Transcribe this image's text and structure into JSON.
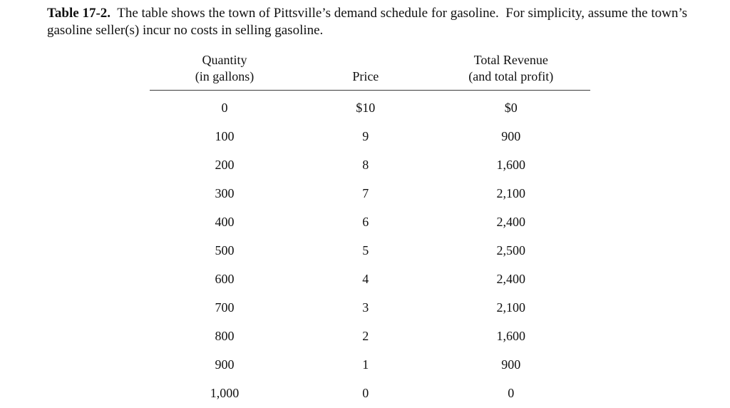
{
  "page": {
    "caption_label": "Table 17-2.",
    "caption_text": "The table shows the town of Pittsville’s demand schedule for gasoline.  For simplicity, assume the town’s gasoline seller(s) incur no costs in selling gasoline."
  },
  "table": {
    "columns": [
      {
        "line1": "Quantity",
        "line2": "(in gallons)"
      },
      {
        "line1": "",
        "line2": "Price"
      },
      {
        "line1": "Total Revenue",
        "line2": "(and total profit)"
      }
    ],
    "rows": [
      {
        "quantity": "0",
        "price": "$10",
        "revenue": "$0"
      },
      {
        "quantity": "100",
        "price": "9",
        "revenue": "900"
      },
      {
        "quantity": "200",
        "price": "8",
        "revenue": "1,600"
      },
      {
        "quantity": "300",
        "price": "7",
        "revenue": "2,100"
      },
      {
        "quantity": "400",
        "price": "6",
        "revenue": "2,400"
      },
      {
        "quantity": "500",
        "price": "5",
        "revenue": "2,500"
      },
      {
        "quantity": "600",
        "price": "4",
        "revenue": "2,400"
      },
      {
        "quantity": "700",
        "price": "3",
        "revenue": "2,100"
      },
      {
        "quantity": "800",
        "price": "2",
        "revenue": "1,600"
      },
      {
        "quantity": "900",
        "price": "1",
        "revenue": "900"
      },
      {
        "quantity": "1,000",
        "price": "0",
        "revenue": "0"
      }
    ]
  }
}
